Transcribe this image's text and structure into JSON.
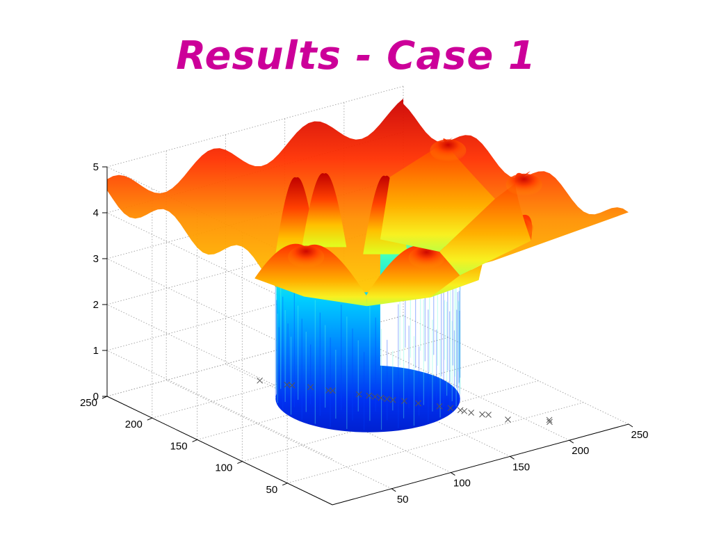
{
  "slide": {
    "title": "Results - Case 1",
    "title_color": "#cc0099"
  },
  "chart_data": {
    "type": "surface",
    "title": "",
    "xlabel": "",
    "ylabel": "",
    "zlabel": "",
    "xlim": [
      0,
      250
    ],
    "ylim": [
      0,
      250
    ],
    "zlim": [
      0,
      5
    ],
    "x_ticks": [
      50,
      100,
      150,
      200,
      250
    ],
    "y_ticks": [
      50,
      100,
      150,
      200,
      250
    ],
    "z_ticks": [
      0,
      1,
      2,
      3,
      4,
      5
    ],
    "grid": true,
    "colormap": "jet",
    "description_series": [
      {
        "name": "surface",
        "z_outer_level": 4.3,
        "z_ring_peak_max": 5.0,
        "z_inner_floor": 0.3
      }
    ],
    "markers": {
      "style": "x",
      "points": [
        [
          210,
          35
        ],
        [
          212,
          38
        ],
        [
          190,
          55
        ],
        [
          185,
          70
        ],
        [
          182,
          73
        ],
        [
          178,
          80
        ],
        [
          176,
          85
        ],
        [
          175,
          88
        ],
        [
          172,
          95
        ],
        [
          168,
          102
        ],
        [
          160,
          115
        ],
        [
          155,
          124
        ],
        [
          150,
          130
        ],
        [
          148,
          134
        ],
        [
          146,
          138
        ],
        [
          144,
          142
        ],
        [
          142,
          146
        ],
        [
          138,
          152
        ],
        [
          128,
          168
        ],
        [
          126,
          170
        ],
        [
          120,
          182
        ],
        [
          112,
          192
        ],
        [
          110,
          195
        ],
        [
          100,
          212
        ]
      ]
    }
  }
}
